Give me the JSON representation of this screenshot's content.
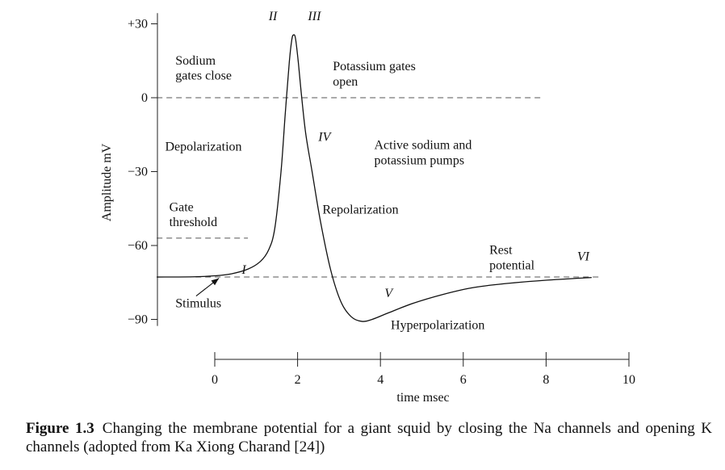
{
  "chart_data": {
    "type": "line",
    "title": "",
    "xlabel": "time msec",
    "ylabel": "Amplitude mV",
    "xlim": [
      -1.4,
      10
    ],
    "ylim": [
      -92,
      35
    ],
    "x_ticks": [
      0,
      2,
      4,
      6,
      8,
      10
    ],
    "x_tick_labels": [
      "0",
      "2",
      "4",
      "6",
      "8",
      "10"
    ],
    "y_ticks": [
      30,
      0,
      -30,
      -60,
      -90
    ],
    "y_tick_labels": [
      "+30",
      "0",
      "−30",
      "−60",
      "−90"
    ],
    "grid": false,
    "series": [
      {
        "values": [
          {
            "x": -1.4,
            "y": -72.8
          },
          {
            "x": -0.5,
            "y": -72.7
          },
          {
            "x": 0.0,
            "y": -72.3
          },
          {
            "x": 0.4,
            "y": -71.5
          },
          {
            "x": 0.8,
            "y": -69.6
          },
          {
            "x": 1.1,
            "y": -66.5
          },
          {
            "x": 1.3,
            "y": -61.8
          },
          {
            "x": 1.45,
            "y": -53.0
          },
          {
            "x": 1.6,
            "y": -30.0
          },
          {
            "x": 1.7,
            "y": -7.0
          },
          {
            "x": 1.8,
            "y": 14.5
          },
          {
            "x": 1.86,
            "y": 23.5
          },
          {
            "x": 1.9,
            "y": 25.5
          },
          {
            "x": 1.95,
            "y": 24.0
          },
          {
            "x": 2.02,
            "y": 14.0
          },
          {
            "x": 2.1,
            "y": 0.0
          },
          {
            "x": 2.2,
            "y": -15.0
          },
          {
            "x": 2.35,
            "y": -30.0
          },
          {
            "x": 2.55,
            "y": -50.0
          },
          {
            "x": 2.8,
            "y": -70.0
          },
          {
            "x": 3.05,
            "y": -83.0
          },
          {
            "x": 3.3,
            "y": -89.0
          },
          {
            "x": 3.55,
            "y": -90.8
          },
          {
            "x": 3.8,
            "y": -90.0
          },
          {
            "x": 4.2,
            "y": -87.3
          },
          {
            "x": 4.8,
            "y": -83.4
          },
          {
            "x": 5.5,
            "y": -79.9
          },
          {
            "x": 6.2,
            "y": -77.2
          },
          {
            "x": 7.0,
            "y": -75.5
          },
          {
            "x": 8.0,
            "y": -74.1
          },
          {
            "x": 9.1,
            "y": -73.0
          }
        ]
      }
    ],
    "reference_lines": [
      {
        "axis": "y",
        "value": 0,
        "x_range": [
          -1.4,
          7.9
        ]
      },
      {
        "axis": "y",
        "value": -57,
        "x_range": [
          -1.4,
          0.8
        ]
      },
      {
        "axis": "y",
        "value": -72.8,
        "x_range": [
          -1.4,
          9.3
        ]
      }
    ],
    "annotations": [
      {
        "text": "II",
        "x": 1.3,
        "y": 31.5,
        "italic": true
      },
      {
        "text": "III",
        "x": 2.25,
        "y": 31.5,
        "italic": true
      },
      {
        "text": "IV",
        "x": 2.5,
        "y": -17.5,
        "italic": true
      },
      {
        "text": "V",
        "x": 4.1,
        "y": -81,
        "italic": true
      },
      {
        "text": "VI",
        "x": 8.75,
        "y": -66,
        "italic": true
      },
      {
        "text": "I",
        "x": 0.65,
        "y": -71.5,
        "italic": true
      },
      {
        "text": "Sodium",
        "x": -0.95,
        "y": 13.5
      },
      {
        "text": "gates close",
        "x": -0.95,
        "y": 7.3
      },
      {
        "text": "Potassium gates",
        "x": 2.85,
        "y": 11.2
      },
      {
        "text": "open",
        "x": 2.85,
        "y": 5.0
      },
      {
        "text": "Depolarization",
        "x": -1.2,
        "y": -21.5
      },
      {
        "text": "Active sodium and",
        "x": 3.85,
        "y": -20.8
      },
      {
        "text": "potassium pumps",
        "x": 3.85,
        "y": -27.0
      },
      {
        "text": "Gate",
        "x": -1.1,
        "y": -46.0
      },
      {
        "text": "threshold",
        "x": -1.1,
        "y": -52.2
      },
      {
        "text": "Repolarization",
        "x": 2.6,
        "y": -47.0
      },
      {
        "text": "Rest",
        "x": 6.63,
        "y": -63.5
      },
      {
        "text": "potential",
        "x": 6.63,
        "y": -69.6
      },
      {
        "text": "Stimulus",
        "x": -0.95,
        "y": -85.0
      },
      {
        "text": "Hyperpolarization",
        "x": 4.25,
        "y": -94.0
      }
    ],
    "arrow": {
      "label": "Stimulus",
      "from": {
        "x": -0.45,
        "y": -80.5
      },
      "to": {
        "x": 0.1,
        "y": -73.3
      }
    }
  },
  "caption": {
    "label": "Figure 1.3",
    "text": "Changing the membrane potential for a giant squid by closing the Na channels and opening K channels (adopted from Ka Xiong Charand [24])"
  }
}
